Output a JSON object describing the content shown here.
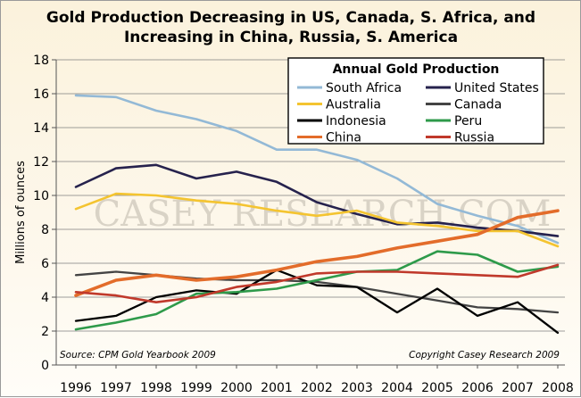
{
  "chart_data": {
    "type": "line",
    "title_lines": [
      "Gold Production Decreasing in US, Canada, S. Africa, and",
      "Increasing in China, Russia, S. America"
    ],
    "ylabel": "Millions of ounces",
    "xlabel": "",
    "ylim": [
      0,
      18
    ],
    "yticks": [
      0,
      2,
      4,
      6,
      8,
      10,
      12,
      14,
      16,
      18
    ],
    "categories": [
      "1996",
      "1997",
      "1998",
      "1999",
      "2000",
      "2001",
      "2002",
      "2003",
      "2004",
      "2005",
      "2006",
      "2007",
      "2008"
    ],
    "grid": true,
    "legend": {
      "title": "Annual Gold Production",
      "placement": "top-right",
      "columns": 2
    },
    "series": [
      {
        "name": "South Africa",
        "color": "#93b9d6",
        "values": [
          15.9,
          15.8,
          15.0,
          14.5,
          13.8,
          12.7,
          12.7,
          12.1,
          11.0,
          9.5,
          8.8,
          8.2,
          7.2
        ]
      },
      {
        "name": "United States",
        "color": "#26224d",
        "values": [
          10.5,
          11.6,
          11.8,
          11.0,
          11.4,
          10.8,
          9.6,
          8.9,
          8.3,
          8.4,
          8.1,
          7.9,
          7.6
        ]
      },
      {
        "name": "Australia",
        "color": "#f4c430",
        "values": [
          9.2,
          10.1,
          10.0,
          9.7,
          9.5,
          9.1,
          8.8,
          9.1,
          8.4,
          8.2,
          7.9,
          7.9,
          7.0
        ]
      },
      {
        "name": "Canada",
        "color": "#444444",
        "values": [
          5.3,
          5.5,
          5.3,
          5.1,
          5.0,
          5.0,
          4.9,
          4.6,
          4.2,
          3.8,
          3.4,
          3.3,
          3.1
        ]
      },
      {
        "name": "Indonesia",
        "color": "#000000",
        "values": [
          2.6,
          2.9,
          4.0,
          4.4,
          4.2,
          5.6,
          4.7,
          4.6,
          3.1,
          4.5,
          2.9,
          3.7,
          1.9
        ]
      },
      {
        "name": "Peru",
        "color": "#2e9a4a",
        "values": [
          2.1,
          2.5,
          3.0,
          4.2,
          4.3,
          4.5,
          5.0,
          5.5,
          5.6,
          6.7,
          6.5,
          5.5,
          5.8
        ]
      },
      {
        "name": "China",
        "color": "#e36c2a",
        "values": [
          4.1,
          5.0,
          5.3,
          5.0,
          5.2,
          5.6,
          6.1,
          6.4,
          6.9,
          7.3,
          7.7,
          8.7,
          9.1
        ]
      },
      {
        "name": "Russia",
        "color": "#c0392b",
        "values": [
          4.3,
          4.1,
          3.7,
          4.0,
          4.6,
          4.9,
          5.4,
          5.5,
          5.5,
          5.4,
          5.3,
          5.2,
          5.9
        ]
      }
    ],
    "annotations": {
      "source": "Source: CPM Gold Yearbook 2009",
      "copyright": "Copyright Casey Research 2009",
      "watermark": "CASEY RESEARCH.COM"
    }
  }
}
